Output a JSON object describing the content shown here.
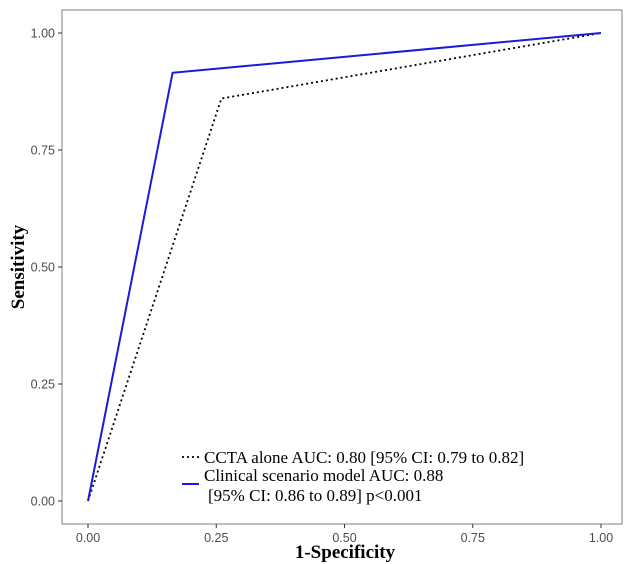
{
  "chart_data": {
    "type": "line",
    "title": "",
    "xlabel": "1-Specificity",
    "ylabel": "Sensitivity",
    "xlim": [
      0,
      1
    ],
    "ylim": [
      0,
      1
    ],
    "x_ticks": [
      "0.00",
      "0.25",
      "0.50",
      "0.75",
      "1.00"
    ],
    "y_ticks": [
      "0.00",
      "0.25",
      "0.50",
      "0.75",
      "1.00"
    ],
    "grid": false,
    "legend_position": "bottom-center",
    "series": [
      {
        "name": "CCTA alone AUC: 0.80 [95% CI: 0.79 to 0.82]",
        "color": "#000000",
        "style": "dotted",
        "x": [
          0,
          0.26,
          1.0
        ],
        "y": [
          0,
          0.86,
          1.0
        ]
      },
      {
        "name": "Clinical scenario model AUC: 0.88",
        "name_line2": "[95% CI: 0.86 to 0.89] p<0.001",
        "color": "#1a1adb",
        "style": "solid",
        "x": [
          0,
          0.165,
          1.0
        ],
        "y": [
          0,
          0.915,
          1.0
        ]
      }
    ]
  }
}
